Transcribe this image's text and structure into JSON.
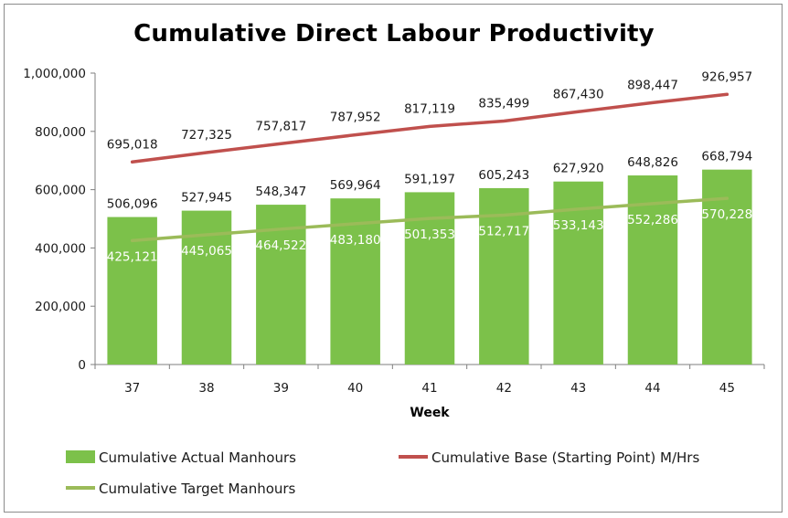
{
  "chart_data": {
    "type": "bar",
    "title": "Cumulative Direct Labour Productivity",
    "xlabel": "Week",
    "ylabel": "",
    "ylim": [
      0,
      1000000
    ],
    "yticks": [
      0,
      200000,
      400000,
      600000,
      800000,
      1000000
    ],
    "ytick_labels": [
      "0",
      "200,000",
      "400,000",
      "600,000",
      "800,000",
      "1,000,000"
    ],
    "categories": [
      "37",
      "38",
      "39",
      "40",
      "41",
      "42",
      "43",
      "44",
      "45"
    ],
    "series": [
      {
        "name": "Cumulative Actual Manhours",
        "kind": "bar",
        "color": "#7cc14a",
        "values": [
          506096,
          527945,
          548347,
          569964,
          591197,
          605243,
          627920,
          648826,
          668794
        ],
        "labels": [
          "506,096",
          "527,945",
          "548,347",
          "569,964",
          "591,197",
          "605,243",
          "627,920",
          "648,826",
          "668,794"
        ]
      },
      {
        "name": "Cumulative Base (Starting Point) M/Hrs",
        "kind": "line",
        "color": "#c0504d",
        "values": [
          695018,
          727325,
          757817,
          787952,
          817119,
          835499,
          867430,
          898447,
          926957
        ],
        "labels": [
          "695,018",
          "727,325",
          "757,817",
          "787,952",
          "817,119",
          "835,499",
          "867,430",
          "898,447",
          "926,957"
        ]
      },
      {
        "name": "Cumulative Target Manhours",
        "kind": "line",
        "color": "#9bbb59",
        "values": [
          425121,
          445065,
          464522,
          483180,
          501353,
          512717,
          533143,
          552286,
          570228
        ],
        "labels": [
          "425,121",
          "445,065",
          "464,522",
          "483,180",
          "501,353",
          "512,717",
          "533,143",
          "552,286",
          "570,228"
        ]
      }
    ],
    "legend": "bottom",
    "grid": false
  }
}
